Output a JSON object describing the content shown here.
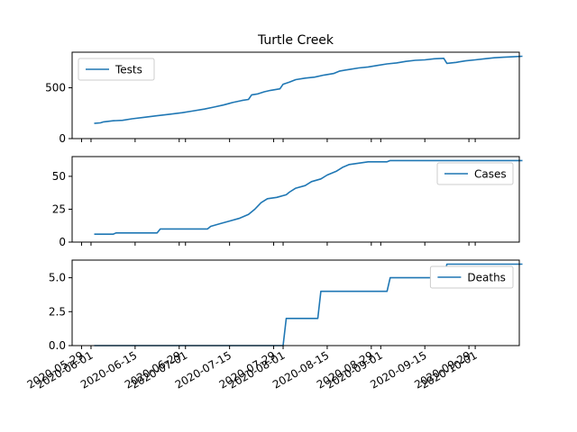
{
  "chart_data": {
    "type": "line",
    "title": "Turtle Creek",
    "shared_x": {
      "type": "date",
      "xlim": [
        "2020-05-26",
        "2020-10-15"
      ],
      "tick_labels": [
        "2020-05-29",
        "2020-06-01",
        "2020-06-15",
        "2020-06-29",
        "2020-07-01",
        "2020-07-15",
        "2020-07-29",
        "2020-08-01",
        "2020-08-15",
        "2020-08-29",
        "2020-09-01",
        "2020-09-15",
        "2020-09-29",
        "2020-10-01"
      ],
      "label_rotation_deg": 30
    },
    "panels": [
      {
        "legend": "Tests",
        "legend_loc": "upper left",
        "ylim": [
          0,
          850
        ],
        "yticks": [
          0,
          500
        ],
        "ytick_labels": [
          "0",
          "500"
        ],
        "points": [
          [
            "2020-06-02",
            150
          ],
          [
            "2020-06-04",
            155
          ],
          [
            "2020-06-05",
            165
          ],
          [
            "2020-06-08",
            175
          ],
          [
            "2020-06-11",
            180
          ],
          [
            "2020-06-14",
            195
          ],
          [
            "2020-06-18",
            210
          ],
          [
            "2020-06-22",
            225
          ],
          [
            "2020-06-26",
            240
          ],
          [
            "2020-06-30",
            255
          ],
          [
            "2020-07-03",
            270
          ],
          [
            "2020-07-07",
            290
          ],
          [
            "2020-07-10",
            310
          ],
          [
            "2020-07-13",
            330
          ],
          [
            "2020-07-16",
            355
          ],
          [
            "2020-07-19",
            375
          ],
          [
            "2020-07-21",
            385
          ],
          [
            "2020-07-22",
            430
          ],
          [
            "2020-07-24",
            440
          ],
          [
            "2020-07-26",
            460
          ],
          [
            "2020-07-28",
            475
          ],
          [
            "2020-07-31",
            490
          ],
          [
            "2020-08-01",
            535
          ],
          [
            "2020-08-03",
            555
          ],
          [
            "2020-08-05",
            580
          ],
          [
            "2020-08-08",
            595
          ],
          [
            "2020-08-11",
            605
          ],
          [
            "2020-08-14",
            625
          ],
          [
            "2020-08-17",
            640
          ],
          [
            "2020-08-19",
            665
          ],
          [
            "2020-08-22",
            680
          ],
          [
            "2020-08-25",
            695
          ],
          [
            "2020-08-28",
            705
          ],
          [
            "2020-08-31",
            720
          ],
          [
            "2020-09-03",
            735
          ],
          [
            "2020-09-06",
            745
          ],
          [
            "2020-09-09",
            760
          ],
          [
            "2020-09-12",
            770
          ],
          [
            "2020-09-15",
            775
          ],
          [
            "2020-09-18",
            785
          ],
          [
            "2020-09-21",
            790
          ],
          [
            "2020-09-22",
            740
          ],
          [
            "2020-09-25",
            750
          ],
          [
            "2020-09-28",
            765
          ],
          [
            "2020-10-01",
            775
          ],
          [
            "2020-10-04",
            785
          ],
          [
            "2020-10-07",
            795
          ],
          [
            "2020-10-10",
            800
          ],
          [
            "2020-10-13",
            805
          ],
          [
            "2020-10-16",
            810
          ]
        ]
      },
      {
        "legend": "Cases",
        "legend_loc": "upper right",
        "ylim": [
          0,
          65
        ],
        "yticks": [
          0,
          25,
          50
        ],
        "ytick_labels": [
          "0",
          "25",
          "50"
        ],
        "points": [
          [
            "2020-06-02",
            6
          ],
          [
            "2020-06-08",
            6
          ],
          [
            "2020-06-09",
            7
          ],
          [
            "2020-06-22",
            7
          ],
          [
            "2020-06-23",
            10
          ],
          [
            "2020-07-08",
            10
          ],
          [
            "2020-07-09",
            12
          ],
          [
            "2020-07-12",
            14
          ],
          [
            "2020-07-15",
            16
          ],
          [
            "2020-07-18",
            18
          ],
          [
            "2020-07-21",
            21
          ],
          [
            "2020-07-23",
            25
          ],
          [
            "2020-07-25",
            30
          ],
          [
            "2020-07-27",
            33
          ],
          [
            "2020-07-30",
            34
          ],
          [
            "2020-08-02",
            36
          ],
          [
            "2020-08-03",
            38
          ],
          [
            "2020-08-05",
            41
          ],
          [
            "2020-08-08",
            43
          ],
          [
            "2020-08-10",
            46
          ],
          [
            "2020-08-13",
            48
          ],
          [
            "2020-08-15",
            51
          ],
          [
            "2020-08-18",
            54
          ],
          [
            "2020-08-20",
            57
          ],
          [
            "2020-08-22",
            59
          ],
          [
            "2020-08-25",
            60
          ],
          [
            "2020-08-28",
            61
          ],
          [
            "2020-09-03",
            61
          ],
          [
            "2020-09-04",
            62
          ],
          [
            "2020-10-16",
            62
          ]
        ]
      },
      {
        "legend": "Deaths",
        "legend_loc": "upper right",
        "ylim": [
          0,
          6.3
        ],
        "yticks": [
          0,
          2.5,
          5
        ],
        "ytick_labels": [
          "0.0",
          "2.5",
          "5.0"
        ],
        "points": [
          [
            "2020-06-02",
            0
          ],
          [
            "2020-08-01",
            0
          ],
          [
            "2020-08-02",
            2
          ],
          [
            "2020-08-12",
            2
          ],
          [
            "2020-08-13",
            4
          ],
          [
            "2020-09-03",
            4
          ],
          [
            "2020-09-04",
            5
          ],
          [
            "2020-09-21",
            5
          ],
          [
            "2020-09-22",
            6
          ],
          [
            "2020-10-16",
            6
          ]
        ]
      }
    ]
  },
  "colors": {
    "series": "#1f77b4",
    "axes": "#000000",
    "legend_border": "#cccccc"
  }
}
